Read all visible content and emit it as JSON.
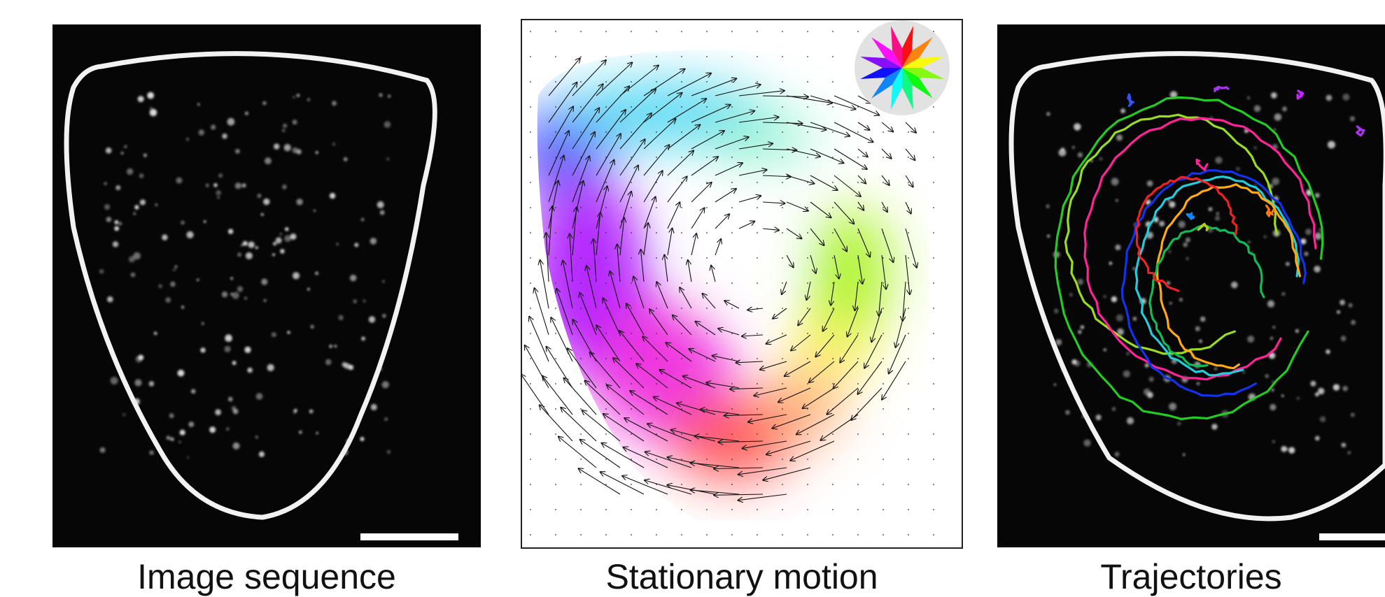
{
  "panels": [
    {
      "caption": "Image sequence"
    },
    {
      "caption": "Stationary motion"
    },
    {
      "caption": "Trajectories"
    }
  ],
  "colors": {
    "background": "#ffffff",
    "micrograph": "#060606",
    "membrane": "#f2f2f2",
    "scale_bar": "#ffffff",
    "arrow": "#111111",
    "panel_border": "#222222"
  },
  "legend_icon": "color-wheel-icon",
  "trajectory_colors": [
    "#99dd22",
    "#ff2299",
    "#22cc22",
    "#ffaa11",
    "#1133ee",
    "#22ccdd",
    "#ee2222",
    "#11bb55",
    "#3355ff",
    "#bbcc11",
    "#aa33ee",
    "#ff7711",
    "#1188ff",
    "#cc22ff"
  ]
}
